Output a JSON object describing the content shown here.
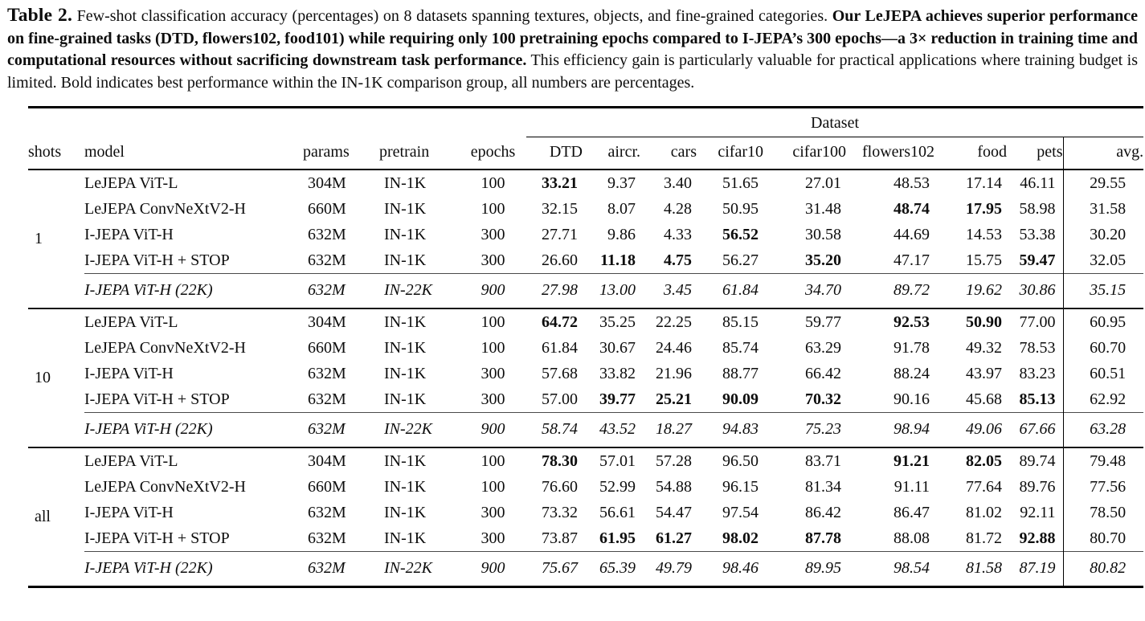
{
  "colors": {
    "background": "#ffffff",
    "text": "#0d0d0d",
    "rule": "#000000"
  },
  "caption": {
    "segments": [
      {
        "text": "Table 2.",
        "bold": true
      },
      {
        "text": " Few-shot classification accuracy (percentages) on 8 datasets spanning textures, objects, and fine-grained categories. ",
        "bold": false
      },
      {
        "text": "Our LeJEPA achieves superior performance on fine-grained tasks (DTD, flowers102, food101) while requiring only 100 pretraining epochs compared to I-JEPA’s 300 epochs—a 3× reduction in training time and computational resources without sacrificing downstream task performance.",
        "bold": true
      },
      {
        "text": " This efficiency gain is particularly valuable for practical applications where training budget is limited. Bold indicates best performance within the IN-1K comparison group, all numbers are percentages.",
        "bold": false
      }
    ]
  },
  "table": {
    "dataset_group_label": "Dataset",
    "col_headers": [
      "shots",
      "model",
      "params",
      "pretrain",
      "epochs",
      "DTD",
      "aircr.",
      "cars",
      "cifar10",
      "cifar100",
      "flowers102",
      "food",
      "pets",
      "avg."
    ],
    "groups": [
      {
        "shots": "1",
        "rows": [
          {
            "model": "LeJEPA ViT-L",
            "params": "304M",
            "pretrain": "IN-1K",
            "epochs": "100",
            "values": [
              "33.21",
              "9.37",
              "3.40",
              "51.65",
              "27.01",
              "48.53",
              "17.14",
              "46.11",
              "29.55"
            ],
            "bold": [
              0
            ],
            "italic": false
          },
          {
            "model": "LeJEPA ConvNeXtV2-H",
            "params": "660M",
            "pretrain": "IN-1K",
            "epochs": "100",
            "values": [
              "32.15",
              "8.07",
              "4.28",
              "50.95",
              "31.48",
              "48.74",
              "17.95",
              "58.98",
              "31.58"
            ],
            "bold": [
              5,
              6
            ],
            "italic": false
          },
          {
            "model": "I-JEPA ViT-H",
            "params": "632M",
            "pretrain": "IN-1K",
            "epochs": "300",
            "values": [
              "27.71",
              "9.86",
              "4.33",
              "56.52",
              "30.58",
              "44.69",
              "14.53",
              "53.38",
              "30.20"
            ],
            "bold": [
              3
            ],
            "italic": false
          },
          {
            "model": "I-JEPA ViT-H + STOP",
            "params": "632M",
            "pretrain": "IN-1K",
            "epochs": "300",
            "values": [
              "26.60",
              "11.18",
              "4.75",
              "56.27",
              "35.20",
              "47.17",
              "15.75",
              "59.47",
              "32.05"
            ],
            "bold": [
              1,
              2,
              4,
              7
            ],
            "italic": false
          },
          {
            "model": "I-JEPA ViT-H (22K)",
            "params": "632M",
            "pretrain": "IN-22K",
            "epochs": "900",
            "values": [
              "27.98",
              "13.00",
              "3.45",
              "61.84",
              "34.70",
              "89.72",
              "19.62",
              "30.86",
              "35.15"
            ],
            "bold": [],
            "italic": true
          }
        ]
      },
      {
        "shots": "10",
        "rows": [
          {
            "model": "LeJEPA ViT-L",
            "params": "304M",
            "pretrain": "IN-1K",
            "epochs": "100",
            "values": [
              "64.72",
              "35.25",
              "22.25",
              "85.15",
              "59.77",
              "92.53",
              "50.90",
              "77.00",
              "60.95"
            ],
            "bold": [
              0,
              5,
              6
            ],
            "italic": false
          },
          {
            "model": "LeJEPA ConvNeXtV2-H",
            "params": "660M",
            "pretrain": "IN-1K",
            "epochs": "100",
            "values": [
              "61.84",
              "30.67",
              "24.46",
              "85.74",
              "63.29",
              "91.78",
              "49.32",
              "78.53",
              "60.70"
            ],
            "bold": [],
            "italic": false
          },
          {
            "model": "I-JEPA ViT-H",
            "params": "632M",
            "pretrain": "IN-1K",
            "epochs": "300",
            "values": [
              "57.68",
              "33.82",
              "21.96",
              "88.77",
              "66.42",
              "88.24",
              "43.97",
              "83.23",
              "60.51"
            ],
            "bold": [],
            "italic": false
          },
          {
            "model": "I-JEPA ViT-H + STOP",
            "params": "632M",
            "pretrain": "IN-1K",
            "epochs": "300",
            "values": [
              "57.00",
              "39.77",
              "25.21",
              "90.09",
              "70.32",
              "90.16",
              "45.68",
              "85.13",
              "62.92"
            ],
            "bold": [
              1,
              2,
              3,
              4,
              7
            ],
            "italic": false
          },
          {
            "model": "I-JEPA ViT-H (22K)",
            "params": "632M",
            "pretrain": "IN-22K",
            "epochs": "900",
            "values": [
              "58.74",
              "43.52",
              "18.27",
              "94.83",
              "75.23",
              "98.94",
              "49.06",
              "67.66",
              "63.28"
            ],
            "bold": [],
            "italic": true
          }
        ]
      },
      {
        "shots": "all",
        "rows": [
          {
            "model": "LeJEPA ViT-L",
            "params": "304M",
            "pretrain": "IN-1K",
            "epochs": "100",
            "values": [
              "78.30",
              "57.01",
              "57.28",
              "96.50",
              "83.71",
              "91.21",
              "82.05",
              "89.74",
              "79.48"
            ],
            "bold": [
              0,
              5,
              6
            ],
            "italic": false
          },
          {
            "model": "LeJEPA ConvNeXtV2-H",
            "params": "660M",
            "pretrain": "IN-1K",
            "epochs": "100",
            "values": [
              "76.60",
              "52.99",
              "54.88",
              "96.15",
              "81.34",
              "91.11",
              "77.64",
              "89.76",
              "77.56"
            ],
            "bold": [],
            "italic": false
          },
          {
            "model": "I-JEPA ViT-H",
            "params": "632M",
            "pretrain": "IN-1K",
            "epochs": "300",
            "values": [
              "73.32",
              "56.61",
              "54.47",
              "97.54",
              "86.42",
              "86.47",
              "81.02",
              "92.11",
              "78.50"
            ],
            "bold": [],
            "italic": false
          },
          {
            "model": "I-JEPA ViT-H + STOP",
            "params": "632M",
            "pretrain": "IN-1K",
            "epochs": "300",
            "values": [
              "73.87",
              "61.95",
              "61.27",
              "98.02",
              "87.78",
              "88.08",
              "81.72",
              "92.88",
              "80.70"
            ],
            "bold": [
              1,
              2,
              3,
              4,
              7
            ],
            "italic": false
          },
          {
            "model": "I-JEPA ViT-H (22K)",
            "params": "632M",
            "pretrain": "IN-22K",
            "epochs": "900",
            "values": [
              "75.67",
              "65.39",
              "49.79",
              "98.46",
              "89.95",
              "98.54",
              "81.58",
              "87.19",
              "80.82"
            ],
            "bold": [],
            "italic": true
          }
        ]
      }
    ]
  }
}
